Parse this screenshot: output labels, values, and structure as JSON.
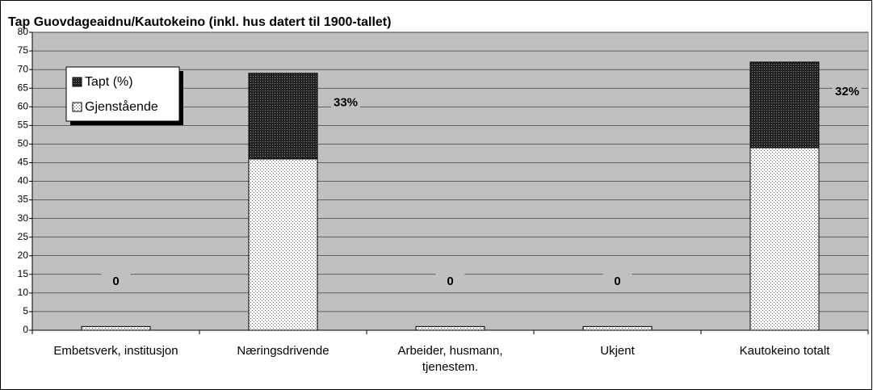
{
  "chart_data": {
    "type": "stacked_bar",
    "title": "Tap Guovdageaidnu/Kautokeino (inkl. hus datert til 1900-tallet)",
    "categories": [
      "Embetsverk, institusjon",
      "Næringsdrivende",
      "Arbeider, husmann, tjenestem.",
      "Ukjent",
      "Kautokeino totalt"
    ],
    "series": [
      {
        "name": "Gjenstående",
        "color": "#ffffff",
        "values": [
          1,
          46,
          1,
          1,
          49
        ]
      },
      {
        "name": "Tapt (%)",
        "color": "#222222",
        "values": [
          0,
          23,
          0,
          0,
          23
        ]
      }
    ],
    "annotations": [
      "0",
      "33%",
      "0",
      "0",
      "32%"
    ],
    "ylim": [
      0,
      80
    ],
    "yticks": [
      0,
      5,
      10,
      15,
      20,
      25,
      30,
      35,
      40,
      45,
      50,
      55,
      60,
      65,
      70,
      75,
      80
    ],
    "grid": true
  }
}
